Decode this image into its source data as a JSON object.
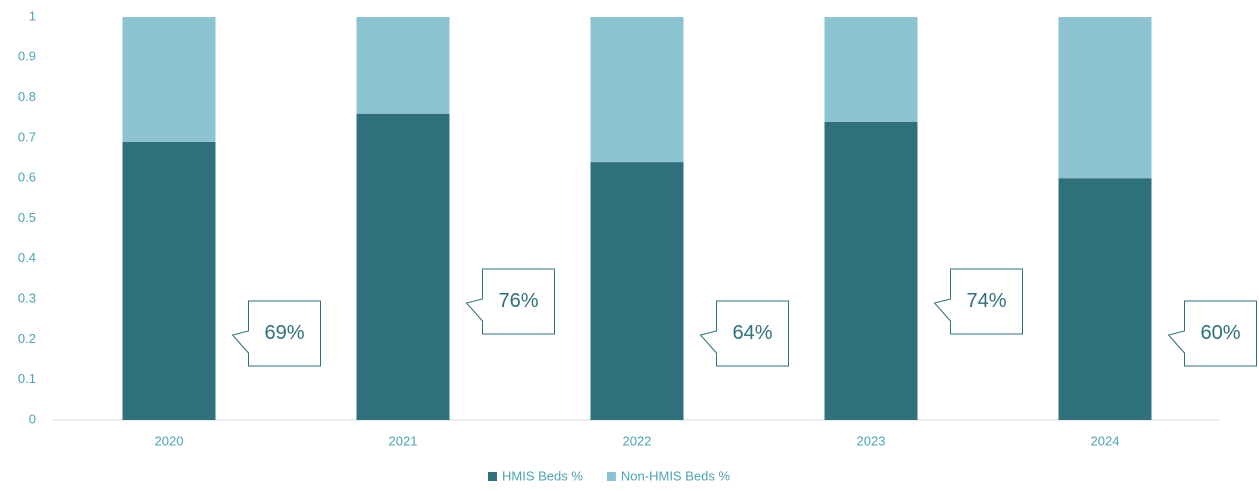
{
  "chart_data": {
    "type": "stacked_bar",
    "categories": [
      "2020",
      "2021",
      "2022",
      "2023",
      "2024"
    ],
    "series": [
      {
        "name": "HMIS Beds %",
        "color": "#2e717c",
        "values": [
          0.69,
          0.76,
          0.64,
          0.74,
          0.6
        ],
        "value_labels": [
          "69%",
          "76%",
          "64%",
          "74%",
          "60%"
        ]
      },
      {
        "name": "Non-HMIS Beds %",
        "color": "#8bc3d1",
        "values": [
          0.31,
          0.24,
          0.36,
          0.26,
          0.4
        ]
      }
    ],
    "ylim": [
      0,
      1
    ],
    "yticks": [
      0,
      0.1,
      0.2,
      0.3,
      0.4,
      0.5,
      0.6,
      0.7,
      0.8,
      0.9,
      1
    ]
  }
}
